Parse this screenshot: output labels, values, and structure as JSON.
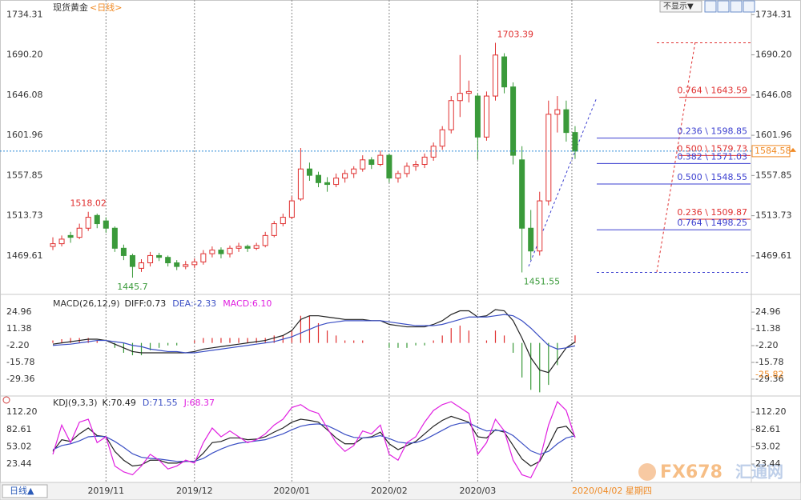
{
  "page": {
    "title": "现货黄金",
    "period": "<日线>",
    "hide_button": "不显示▼",
    "period_button": "日线▲",
    "cursor_date": "2020/04/02 星期四",
    "watermark": "FX678",
    "watermark_cn": "汇通网"
  },
  "chart_data": [
    {
      "type": "candlestick",
      "up_color": "#e03030",
      "down_color": "#3a9a3a",
      "ylim": [
        1430,
        1746
      ],
      "yticks": [
        1469.61,
        1513.73,
        1557.85,
        1601.96,
        1646.08,
        {
          "value": 1690.2,
          "label": "1690.20"
        },
        1734.31
      ],
      "categories": [
        null,
        null,
        null,
        null,
        null,
        null,
        "2019/11",
        null,
        null,
        null,
        null,
        null,
        null,
        null,
        null,
        null,
        "2019/12",
        null,
        null,
        null,
        null,
        null,
        null,
        null,
        null,
        null,
        null,
        "2020/01",
        null,
        null,
        null,
        null,
        null,
        null,
        null,
        null,
        null,
        null,
        "2020/02",
        null,
        null,
        null,
        null,
        null,
        null,
        null,
        null,
        null,
        "2020/03",
        null,
        null,
        null,
        null,
        null,
        null,
        null,
        null,
        null,
        null,
        null
      ],
      "candles": [
        [
          1480,
          1490,
          1476,
          1483
        ],
        [
          1483,
          1492,
          1480,
          1488
        ],
        [
          1492,
          1496,
          1484,
          1490
        ],
        [
          1490,
          1505,
          1488,
          1500
        ],
        [
          1500,
          1518.02,
          1497,
          1512
        ],
        [
          1514,
          1516,
          1500,
          1505
        ],
        [
          1508,
          1512,
          1495,
          1500
        ],
        [
          1500,
          1502,
          1474,
          1478
        ],
        [
          1478,
          1482,
          1465,
          1470
        ],
        [
          1470,
          1472,
          1445.7,
          1458
        ],
        [
          1456,
          1466,
          1452,
          1462
        ],
        [
          1462,
          1474,
          1458,
          1470
        ],
        [
          1470,
          1473,
          1464,
          1468
        ],
        [
          1468,
          1470,
          1458,
          1462
        ],
        [
          1462,
          1465,
          1454,
          1458
        ],
        [
          1458,
          1464,
          1455,
          1460
        ],
        [
          1460,
          1467,
          1456,
          1463
        ],
        [
          1463,
          1476,
          1460,
          1472
        ],
        [
          1472,
          1480,
          1468,
          1476
        ],
        [
          1476,
          1479,
          1467,
          1472
        ],
        [
          1472,
          1481,
          1468,
          1478
        ],
        [
          1478,
          1484,
          1474,
          1480
        ],
        [
          1480,
          1482,
          1474,
          1478
        ],
        [
          1478,
          1484,
          1476,
          1481
        ],
        [
          1481,
          1496,
          1479,
          1492
        ],
        [
          1492,
          1508,
          1490,
          1505
        ],
        [
          1505,
          1516,
          1502,
          1512
        ],
        [
          1512,
          1535,
          1510,
          1530
        ],
        [
          1532,
          1588,
          1530,
          1565
        ],
        [
          1565,
          1572,
          1552,
          1558
        ],
        [
          1558,
          1562,
          1545,
          1550
        ],
        [
          1550,
          1556,
          1540,
          1548
        ],
        [
          1548,
          1560,
          1545,
          1555
        ],
        [
          1555,
          1564,
          1550,
          1560
        ],
        [
          1560,
          1568,
          1555,
          1565
        ],
        [
          1565,
          1580,
          1562,
          1575
        ],
        [
          1575,
          1578,
          1565,
          1570
        ],
        [
          1570,
          1585,
          1568,
          1580
        ],
        [
          1580,
          1582,
          1550,
          1555
        ],
        [
          1555,
          1563,
          1550,
          1560
        ],
        [
          1560,
          1572,
          1556,
          1568
        ],
        [
          1568,
          1574,
          1563,
          1570
        ],
        [
          1570,
          1582,
          1566,
          1578
        ],
        [
          1578,
          1594,
          1574,
          1590
        ],
        [
          1590,
          1612,
          1586,
          1608
        ],
        [
          1608,
          1645,
          1604,
          1640
        ],
        [
          1640,
          1690,
          1622,
          1648
        ],
        [
          1648,
          1662,
          1638,
          1650
        ],
        [
          1645,
          1648,
          1575,
          1600
        ],
        [
          1600,
          1650,
          1596,
          1645
        ],
        [
          1645,
          1703.39,
          1640,
          1690
        ],
        [
          1688,
          1692,
          1648,
          1655
        ],
        [
          1655,
          1660,
          1570,
          1580
        ],
        [
          1575,
          1590,
          1451.55,
          1500
        ],
        [
          1500,
          1520,
          1465,
          1475
        ],
        [
          1475,
          1540,
          1470,
          1530
        ],
        [
          1530,
          1640,
          1525,
          1625
        ],
        [
          1625,
          1645,
          1605,
          1630
        ],
        [
          1630,
          1640,
          1595,
          1605
        ],
        [
          1605,
          1612,
          1576,
          1584.58
        ]
      ],
      "fib_levels": [
        {
          "value": 1643.59,
          "label": "0.764 \\ 1643.59",
          "color": "#e03030"
        },
        {
          "value": 1598.85,
          "label": "0.236 \\ 1598.85",
          "color": "#3b3fd0"
        },
        {
          "value": 1579.73,
          "label": "0.500 \\ 1579.73",
          "color": "#e03030"
        },
        {
          "value": 1571.03,
          "label": "0.382 \\ 1571.03",
          "color": "#3b3fd0"
        },
        {
          "value": 1548.55,
          "label": "0.500 \\ 1548.55",
          "color": "#3b3fd0"
        },
        {
          "value": 1509.87,
          "label": "0.236 \\ 1509.87",
          "color": "#e03030"
        },
        {
          "value": 1498.25,
          "label": "0.764 \\ 1498.25",
          "color": "#3b3fd0"
        }
      ]
    },
    {
      "type": "macd",
      "title": "MACD(26,12,9)",
      "ylim": [
        -43,
        38
      ],
      "yticks": [
        -29.36,
        -15.78,
        {
          "value": -2.2,
          "label": "-2.20"
        },
        11.38,
        24.96
      ],
      "marker": -25.82,
      "series": [
        {
          "name": "DIFF:0.73",
          "color": "#222222",
          "values": [
            -1,
            0,
            1,
            2,
            3,
            3,
            2,
            -1,
            -4,
            -7,
            -8,
            -8,
            -8,
            -8,
            -8,
            -8,
            -7,
            -5,
            -4,
            -3,
            -2,
            -1,
            0,
            1,
            2,
            4,
            6,
            10,
            19,
            22,
            22,
            21,
            20,
            19,
            19,
            19,
            18,
            18,
            15,
            14,
            13,
            13,
            13,
            15,
            18,
            23,
            26,
            26,
            21,
            22,
            27,
            26,
            18,
            4,
            -12,
            -22,
            -24,
            -14,
            -4,
            0.73
          ]
        },
        {
          "name": "DEA:-2.33",
          "color": "#3b4fc4",
          "values": [
            -2,
            -1.5,
            -1,
            0,
            1,
            2,
            2,
            1,
            0,
            -2,
            -3,
            -5,
            -6,
            -7,
            -7,
            -8,
            -8,
            -7,
            -6,
            -5,
            -4,
            -3,
            -2,
            -1,
            0,
            1,
            3,
            5,
            8,
            11,
            14,
            16,
            17,
            18,
            18,
            18,
            18,
            18,
            17,
            16,
            15,
            14,
            14,
            14,
            15,
            17,
            19,
            21,
            21,
            21,
            22,
            23,
            22,
            18,
            12,
            5,
            -2,
            -5,
            -4,
            -2.33
          ]
        },
        {
          "name": "MACD:6.10",
          "color": "#e020e0",
          "up_color": "#e03030",
          "down_color": "#3a9a3a",
          "values": [
            2,
            3,
            4,
            4,
            4,
            2,
            0,
            -4,
            -8,
            -10,
            -10,
            -6,
            -4,
            -2,
            -2,
            0,
            2,
            4,
            4,
            4,
            4,
            4,
            4,
            4,
            4,
            6,
            6,
            10,
            22,
            22,
            16,
            10,
            6,
            2,
            2,
            2,
            0,
            0,
            -4,
            -4,
            -4,
            -2,
            -2,
            2,
            6,
            12,
            14,
            10,
            0,
            2,
            10,
            6,
            -8,
            -28,
            -38,
            -40,
            -34,
            -18,
            0,
            6.1
          ]
        }
      ]
    },
    {
      "type": "line",
      "title": "KDJ(9,3,3)",
      "ylim": [
        -8,
        137
      ],
      "yticks": [
        23.44,
        53.02,
        82.61,
        {
          "value": 112.2,
          "label": "112.20"
        }
      ],
      "series": [
        {
          "name": "K:70.49",
          "color": "#222222",
          "values": [
            45,
            65,
            62,
            75,
            85,
            72,
            70,
            45,
            30,
            20,
            22,
            30,
            30,
            25,
            25,
            28,
            28,
            42,
            60,
            62,
            68,
            68,
            65,
            66,
            70,
            78,
            85,
            95,
            100,
            98,
            95,
            82,
            68,
            58,
            58,
            68,
            70,
            78,
            58,
            48,
            55,
            62,
            75,
            88,
            98,
            105,
            100,
            95,
            70,
            68,
            82,
            78,
            55,
            32,
            20,
            28,
            55,
            85,
            88,
            70.49
          ]
        },
        {
          "name": "D:71.55",
          "color": "#3b4fc4",
          "values": [
            48,
            55,
            58,
            63,
            70,
            71,
            70,
            62,
            52,
            41,
            35,
            33,
            32,
            30,
            28,
            28,
            28,
            33,
            42,
            49,
            55,
            59,
            61,
            63,
            65,
            70,
            75,
            82,
            88,
            91,
            92,
            89,
            82,
            74,
            69,
            68,
            69,
            72,
            67,
            61,
            59,
            60,
            65,
            73,
            81,
            89,
            93,
            94,
            86,
            80,
            81,
            80,
            72,
            59,
            46,
            40,
            45,
            58,
            68,
            71.55
          ]
        },
        {
          "name": "J:68.37",
          "color": "#e020e0",
          "values": [
            40,
            90,
            60,
            95,
            100,
            60,
            70,
            20,
            10,
            5,
            20,
            40,
            30,
            15,
            20,
            30,
            25,
            60,
            85,
            70,
            80,
            70,
            60,
            65,
            75,
            90,
            100,
            120,
            125,
            115,
            110,
            85,
            60,
            45,
            55,
            80,
            75,
            90,
            40,
            30,
            60,
            70,
            95,
            115,
            125,
            130,
            120,
            110,
            40,
            60,
            100,
            80,
            30,
            5,
            0,
            30,
            90,
            130,
            115,
            68.37
          ]
        }
      ]
    }
  ]
}
